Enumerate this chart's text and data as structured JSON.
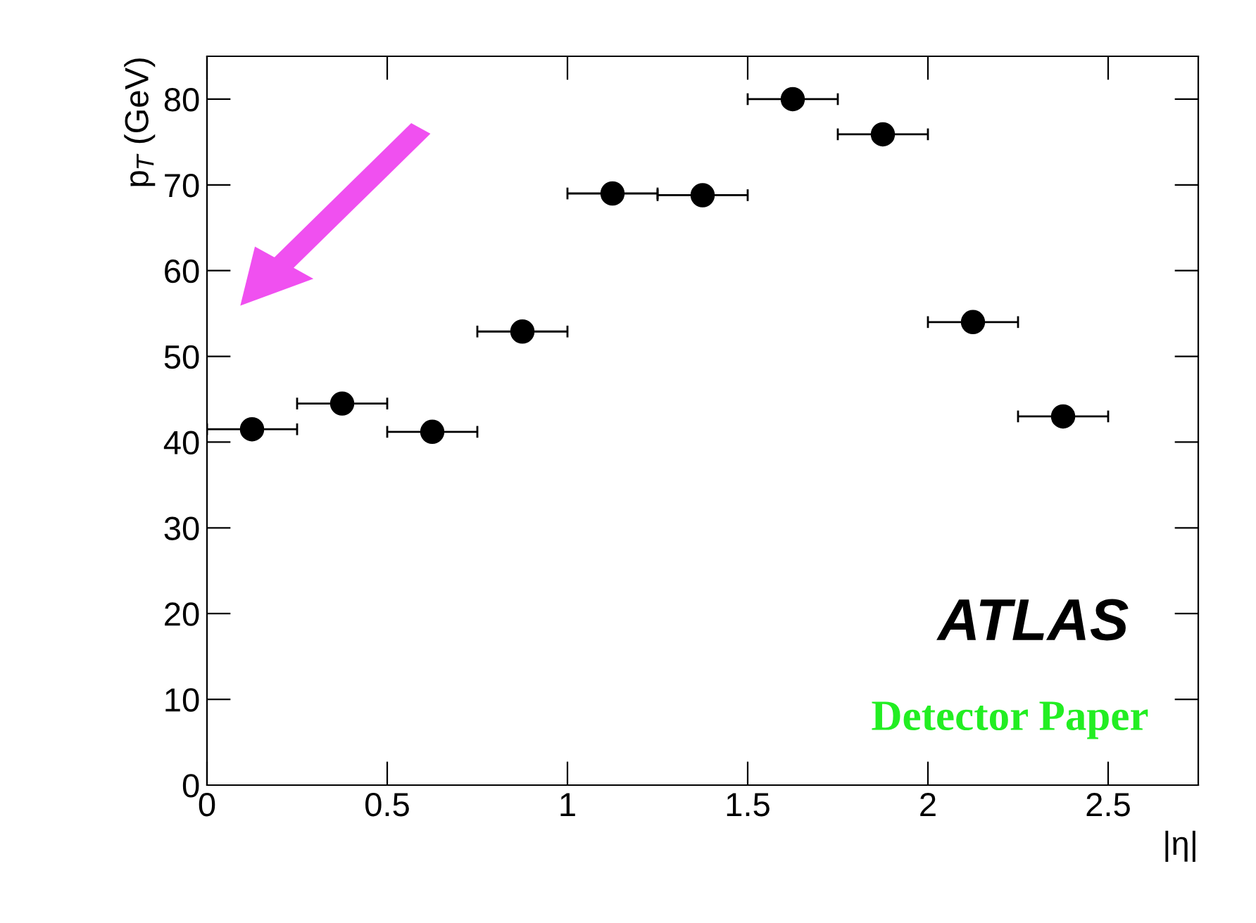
{
  "chart_data": {
    "type": "scatter",
    "xlabel": "|η|",
    "ylabel": "p$_{T}$ (GeV)",
    "x": [
      0.125,
      0.375,
      0.625,
      0.875,
      1.125,
      1.375,
      1.625,
      1.875,
      2.125,
      2.375
    ],
    "series": [
      {
        "color": "#000000",
        "values": [
          41.5,
          44.5,
          41.2,
          52.9,
          69.0,
          68.8,
          80.0,
          75.9,
          54.0,
          43.0
        ],
        "xerrors": [
          0.125,
          0.125,
          0.125,
          0.125,
          0.125,
          0.125,
          0.125,
          0.125,
          0.125,
          0.125
        ]
      }
    ],
    "xlim": [
      0,
      2.75
    ],
    "ylim": [
      0,
      85
    ],
    "xticks": [
      0,
      0.5,
      1,
      1.5,
      2,
      2.5
    ],
    "yticks": [
      0,
      10,
      20,
      30,
      40,
      50,
      60,
      70,
      80
    ],
    "marker": "circle",
    "grid": false,
    "legend": false,
    "annotations": [
      "ATLAS",
      "Detector Paper"
    ]
  }
}
